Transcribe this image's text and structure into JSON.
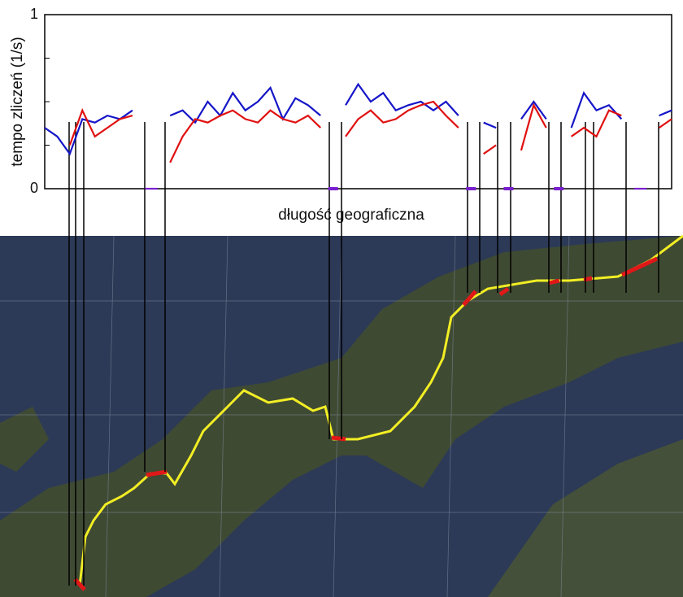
{
  "chart_data": {
    "type": "line",
    "ylabel": "tempo zliczeń (1/s)",
    "xlabel": "długość geograficzna",
    "x": [
      0,
      2,
      4,
      6,
      8,
      10,
      12,
      14,
      16,
      18,
      20,
      22,
      24,
      26,
      28,
      30,
      32,
      34,
      36,
      38,
      40,
      42,
      44,
      46,
      48,
      50,
      52,
      54,
      56,
      58,
      60,
      62,
      64,
      66,
      68,
      70,
      72,
      74,
      76,
      78,
      80,
      82,
      84,
      86,
      88,
      90,
      92,
      94,
      96,
      98,
      100
    ],
    "xlim": [
      0,
      100
    ],
    "ylim": [
      0,
      1
    ],
    "yticks": [
      0,
      1
    ],
    "yminor_ticks": [
      0.25,
      0.5,
      0.75
    ],
    "series": [
      {
        "color": "#1515c8",
        "values": [
          0.35,
          0.3,
          0.2,
          0.4,
          0.38,
          0.42,
          0.4,
          0.45,
          null,
          null,
          0.42,
          0.45,
          0.38,
          0.5,
          0.42,
          0.55,
          0.45,
          0.5,
          0.58,
          0.4,
          0.52,
          0.48,
          0.42,
          null,
          0.48,
          0.6,
          0.5,
          0.55,
          0.45,
          0.48,
          0.5,
          0.45,
          0.5,
          0.42,
          null,
          0.38,
          0.35,
          null,
          0.4,
          0.5,
          0.4,
          null,
          0.35,
          0.55,
          0.45,
          0.48,
          0.4,
          null,
          null,
          0.42,
          0.45
        ]
      },
      {
        "color": "#e01010",
        "values": [
          null,
          null,
          0.25,
          0.45,
          0.3,
          0.35,
          0.4,
          0.42,
          null,
          null,
          0.15,
          0.3,
          0.4,
          0.38,
          0.42,
          0.45,
          0.4,
          0.38,
          0.45,
          0.4,
          0.38,
          0.42,
          0.35,
          null,
          0.3,
          0.4,
          0.45,
          0.38,
          0.4,
          0.45,
          0.48,
          0.5,
          0.42,
          0.35,
          null,
          0.2,
          0.25,
          null,
          0.22,
          0.48,
          0.35,
          null,
          0.3,
          0.35,
          0.3,
          0.45,
          0.42,
          null,
          null,
          0.35,
          0.4
        ]
      },
      {
        "color": "#7a1fd0",
        "values": [
          null,
          null,
          null,
          null,
          null,
          null,
          null,
          null,
          0,
          0,
          null,
          null,
          null,
          null,
          null,
          null,
          null,
          null,
          null,
          null,
          null,
          null,
          null,
          0,
          null,
          null,
          null,
          null,
          null,
          null,
          null,
          null,
          null,
          null,
          0,
          null,
          null,
          0,
          null,
          null,
          null,
          0,
          null,
          null,
          null,
          null,
          null,
          0,
          0,
          null,
          null
        ]
      }
    ]
  }
}
